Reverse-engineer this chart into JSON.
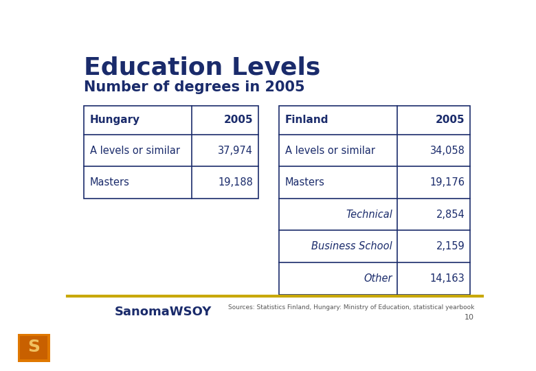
{
  "title": "Education Levels",
  "subtitle": "Number of degrees in 2005",
  "title_color": "#1a2b6b",
  "subtitle_color": "#1a2b6b",
  "background_color": "#ffffff",
  "hungary_table": {
    "header": [
      "Hungary",
      "2005"
    ],
    "rows": [
      [
        "A levels or similar",
        "37,974"
      ],
      [
        "Masters",
        "19,188"
      ]
    ]
  },
  "finland_table": {
    "header": [
      "Finland",
      "2005"
    ],
    "rows": [
      [
        "A levels or similar",
        "34,058"
      ],
      [
        "Masters",
        "19,176"
      ],
      [
        "Technical",
        "2,854"
      ],
      [
        "Business School",
        "2,159"
      ],
      [
        "Other",
        "14,163"
      ]
    ],
    "italic_rows": [
      2,
      3,
      4
    ]
  },
  "footer_source": "Sources: Statistics Finland, Hungary: Ministry of Education, statistical yearbook",
  "footer_page": "10",
  "table_border_color": "#1a2b6b",
  "table_text_color": "#1a2b6b",
  "footer_line_color": "#c8a800",
  "logo_text": "SanomaWSOY",
  "logo_text_color": "#1a2b6b",
  "footer_text_color": "#555555"
}
